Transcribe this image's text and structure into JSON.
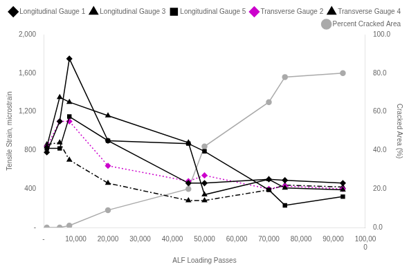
{
  "chart_data": {
    "type": "line",
    "x_label": "ALF Loading Passes",
    "y_label": "Tensile Strain, microstrain",
    "y2_label": "Cracked Area (%)",
    "x": [
      1000,
      5000,
      8000,
      20000,
      45000,
      50000,
      70000,
      75000,
      93000
    ],
    "xlim": [
      0,
      100000
    ],
    "xticks": [
      {
        "value": 0,
        "label": "-"
      },
      {
        "value": 10000,
        "label": "10,000"
      },
      {
        "value": 20000,
        "label": "20,000"
      },
      {
        "value": 30000,
        "label": "30,000"
      },
      {
        "value": 40000,
        "label": "40,000"
      },
      {
        "value": 50000,
        "label": "50,000"
      },
      {
        "value": 60000,
        "label": "60,000"
      },
      {
        "value": 70000,
        "label": "70,000"
      },
      {
        "value": 80000,
        "label": "80,000"
      },
      {
        "value": 90000,
        "label": "90,000"
      },
      {
        "value": 100000,
        "label": "100,00\n0"
      }
    ],
    "ylim": [
      0,
      2000
    ],
    "yticks": [
      {
        "value": 0,
        "label": "-"
      },
      400,
      800,
      {
        "value": 1200,
        "label": "1,200"
      },
      {
        "value": 1600,
        "label": "1,600"
      },
      {
        "value": 2000,
        "label": "2,000"
      }
    ],
    "y2lim": [
      0,
      100
    ],
    "y2ticks": [
      {
        "value": 0,
        "label": "0.0"
      },
      {
        "value": 20,
        "label": "20.0"
      },
      {
        "value": 40,
        "label": "40.0"
      },
      {
        "value": 60,
        "label": "60.0"
      },
      {
        "value": 80,
        "label": "80.0"
      },
      {
        "value": 100,
        "label": "100.0"
      }
    ],
    "grid": false,
    "legend": "upper right",
    "series": [
      {
        "name": "Longitudinal Gauge 1",
        "color": "#000000",
        "marker": "diamond",
        "line_style": "solid",
        "values": [
          780,
          1100,
          1750,
          900,
          460,
          460,
          500,
          490,
          460
        ]
      },
      {
        "name": "Longitudinal Gauge 3",
        "color": "#000000",
        "marker": "triangle",
        "line_style": "solid",
        "values": [
          840,
          1350,
          1300,
          1160,
          880,
          340,
          500,
          410,
          390
        ]
      },
      {
        "name": "Longitudinal Gauge 5",
        "color": "#000000",
        "marker": "square",
        "line_style": "solid",
        "values": [
          820,
          820,
          1150,
          900,
          870,
          790,
          390,
          230,
          320
        ]
      },
      {
        "name": "Transverse Gauge 2",
        "color": "#cc00cc",
        "marker": "diamond",
        "line_style": "dotted",
        "values": [
          840,
          1100,
          1100,
          640,
          480,
          540,
          400,
          430,
          400
        ]
      },
      {
        "name": "Transverse Gauge 4",
        "color": "#000000",
        "marker": "triangle",
        "line_style": "dashdot",
        "values": [
          860,
          880,
          700,
          460,
          280,
          280,
          390,
          440,
          420
        ]
      },
      {
        "name": "Percent Cracked Area",
        "color": "#aaaaaa",
        "marker": "circle",
        "line_style": "solid",
        "axis": "y2",
        "values": [
          0,
          0,
          1,
          9,
          20,
          42,
          65,
          78,
          80
        ]
      }
    ]
  }
}
